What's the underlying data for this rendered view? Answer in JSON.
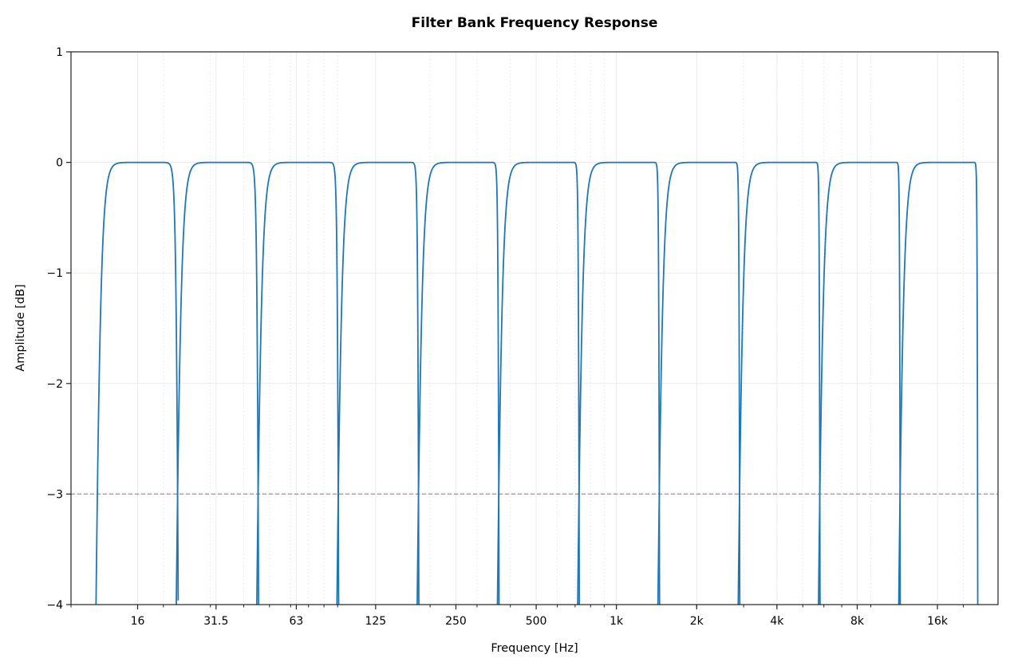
{
  "chart_data": {
    "type": "line",
    "title": "Filter Bank Frequency Response",
    "xlabel": "Frequency [Hz]",
    "ylabel": "Amplitude [dB]",
    "x_scale": "log",
    "xlim": [
      9,
      27000
    ],
    "ylim": [
      -4,
      1
    ],
    "x_ticks": [
      16,
      31.5,
      63,
      125,
      250,
      500,
      1000,
      2000,
      4000,
      8000,
      16000
    ],
    "x_tick_labels": [
      "16",
      "31.5",
      "63",
      "125",
      "250",
      "500",
      "1k",
      "2k",
      "4k",
      "8k",
      "16k"
    ],
    "y_ticks": [
      1,
      0,
      -1,
      -2,
      -3,
      -4
    ],
    "y_tick_labels": [
      "1",
      "0",
      "−1",
      "−2",
      "−3",
      "−4"
    ],
    "grid": true,
    "line_color": "#1f77b4",
    "bands": [
      {
        "center": 16,
        "low": 11.3,
        "high": 22.6
      },
      {
        "center": 31.5,
        "low": 22.6,
        "high": 45.3
      },
      {
        "center": 63,
        "low": 45.3,
        "high": 90.5
      },
      {
        "center": 125,
        "low": 90.5,
        "high": 181
      },
      {
        "center": 250,
        "low": 181,
        "high": 362
      },
      {
        "center": 500,
        "low": 362,
        "high": 724
      },
      {
        "center": 1000,
        "low": 724,
        "high": 1448
      },
      {
        "center": 2000,
        "low": 1448,
        "high": 2896
      },
      {
        "center": 4000,
        "low": 2896,
        "high": 5793
      },
      {
        "center": 8000,
        "low": 5793,
        "high": 11585
      },
      {
        "center": 16000,
        "low": 11585,
        "high": 22627
      }
    ],
    "reference_line": {
      "y": -3,
      "color": "#d62728",
      "style": "dashed"
    }
  }
}
